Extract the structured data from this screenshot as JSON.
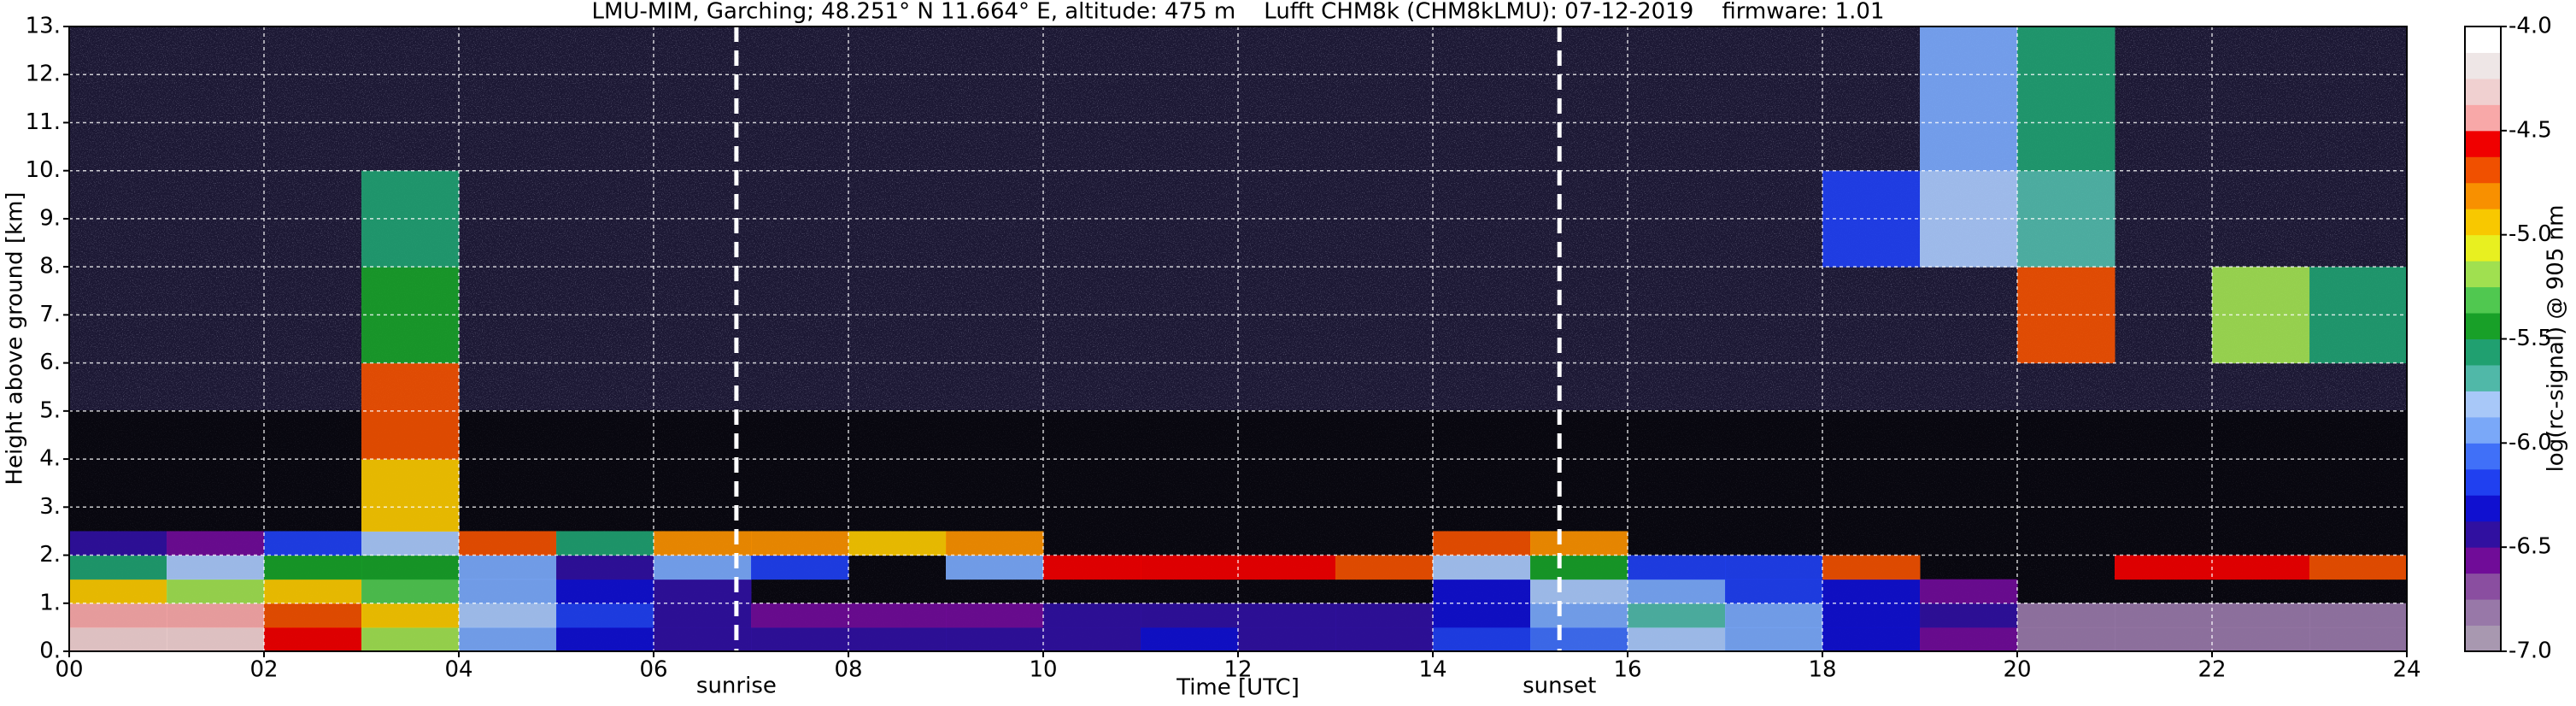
{
  "chart_data": {
    "type": "heatmap",
    "title": "LMU-MIM, Garching; 48.251° N 11.664° E, altitude: 475 m    Lufft CHM8k (CHM8kLMU): 07-12-2019    firmware: 1.01",
    "x_label": "Time [UTC]",
    "y_label": "Height above ground [km]",
    "colorbar_label": "log(rc-signal) @ 905 nm",
    "x": [
      0,
      1,
      2,
      3,
      4,
      5,
      6,
      7,
      8,
      9,
      10,
      11,
      12,
      13,
      14,
      15,
      16,
      17,
      18,
      19,
      20,
      21,
      22,
      23,
      24
    ],
    "y": [
      0,
      0.5,
      1,
      1.5,
      2,
      2.5,
      4,
      6,
      8,
      10,
      13
    ],
    "values": [
      [
        -4.3,
        -4.3,
        -4.6,
        -5.2,
        -6.0,
        -6.3,
        -6.4,
        -6.5,
        -6.5,
        -6.5,
        -6.4,
        -6.3,
        -6.4,
        -6.4,
        -6.2,
        -6.1,
        -5.8,
        -6.0,
        -6.3,
        -6.6,
        -6.8,
        -6.8,
        -6.8,
        -6.8
      ],
      [
        -4.4,
        -4.5,
        -4.7,
        -5.0,
        -5.8,
        -6.2,
        -6.4,
        -6.6,
        -6.6,
        -6.6,
        -6.5,
        -6.5,
        -6.5,
        -6.5,
        -6.3,
        -6.0,
        -5.7,
        -6.0,
        -6.3,
        -6.5,
        -6.8,
        -6.8,
        -6.8,
        -6.8
      ],
      [
        -5.0,
        -5.2,
        -4.9,
        -5.3,
        -6.0,
        -6.3,
        -6.4,
        null,
        null,
        null,
        null,
        null,
        null,
        null,
        -6.3,
        -5.8,
        -5.9,
        -6.2,
        -6.3,
        -6.6,
        null,
        null,
        null,
        null
      ],
      [
        -5.6,
        -5.8,
        -5.4,
        -5.5,
        -6.0,
        -6.4,
        -6.0,
        -6.2,
        null,
        -6.0,
        -4.6,
        -4.6,
        -4.6,
        -4.7,
        -5.8,
        -5.5,
        -6.2,
        -6.2,
        -4.7,
        null,
        null,
        -4.6,
        -4.6,
        -4.7
      ],
      [
        -6.4,
        -6.6,
        -6.2,
        -5.8,
        -4.7,
        -5.6,
        -4.8,
        -4.8,
        -4.9,
        -4.8,
        null,
        null,
        null,
        null,
        -4.7,
        -4.8,
        null,
        null,
        null,
        null,
        null,
        null,
        null,
        null
      ],
      [
        null,
        null,
        null,
        -5.0,
        null,
        null,
        null,
        null,
        null,
        null,
        null,
        null,
        null,
        null,
        null,
        null,
        null,
        null,
        null,
        null,
        null,
        null,
        null,
        null
      ],
      [
        null,
        null,
        null,
        -4.7,
        null,
        null,
        null,
        null,
        null,
        null,
        null,
        null,
        null,
        null,
        null,
        null,
        null,
        null,
        null,
        null,
        null,
        null,
        null,
        null
      ],
      [
        null,
        null,
        null,
        -5.5,
        null,
        null,
        null,
        null,
        null,
        null,
        null,
        null,
        null,
        null,
        null,
        null,
        null,
        null,
        null,
        null,
        -4.7,
        null,
        -5.2,
        -5.6
      ],
      [
        null,
        null,
        null,
        -5.6,
        null,
        null,
        null,
        null,
        null,
        null,
        null,
        null,
        null,
        null,
        null,
        null,
        null,
        null,
        -6.2,
        -5.8,
        -5.7,
        null,
        null,
        null
      ],
      [
        null,
        null,
        null,
        null,
        null,
        null,
        null,
        null,
        null,
        null,
        null,
        null,
        null,
        null,
        null,
        null,
        null,
        null,
        null,
        -6.0,
        -5.6,
        null,
        null,
        null
      ]
    ],
    "clim": [
      -7,
      -4
    ],
    "colors": [
      "#a898b0",
      "#9878a8",
      "#8a4ea0",
      "#700c98",
      "#3010a0",
      "#1010d0",
      "#2040f0",
      "#4070f8",
      "#7aa8f8",
      "#a8c8f8",
      "#50b8a8",
      "#20a070",
      "#18a028",
      "#50c850",
      "#a0e050",
      "#e8f020",
      "#f8c800",
      "#f89000",
      "#f05000",
      "#f00000",
      "#f8a8a8",
      "#f0d0d0",
      "#eee6e6",
      "#ffffff"
    ],
    "xlim": [
      0,
      24
    ],
    "ylim": [
      0,
      13
    ],
    "xticks": [
      {
        "value": 0,
        "label": "00"
      },
      {
        "value": 2,
        "label": "02"
      },
      {
        "value": 4,
        "label": "04"
      },
      {
        "value": 6,
        "label": "06"
      },
      {
        "value": 8,
        "label": "08"
      },
      {
        "value": 10,
        "label": "10"
      },
      {
        "value": 12,
        "label": "12"
      },
      {
        "value": 14,
        "label": "14"
      },
      {
        "value": 16,
        "label": "16"
      },
      {
        "value": 18,
        "label": "18"
      },
      {
        "value": 20,
        "label": "20"
      },
      {
        "value": 22,
        "label": "22"
      },
      {
        "value": 24,
        "label": "24"
      }
    ],
    "yticks": [
      {
        "value": 0,
        "label": "0."
      },
      {
        "value": 1,
        "label": "1."
      },
      {
        "value": 2,
        "label": "2."
      },
      {
        "value": 3,
        "label": "3."
      },
      {
        "value": 4,
        "label": "4."
      },
      {
        "value": 5,
        "label": "5."
      },
      {
        "value": 6,
        "label": "6."
      },
      {
        "value": 7,
        "label": "7."
      },
      {
        "value": 8,
        "label": "8."
      },
      {
        "value": 9,
        "label": "9."
      },
      {
        "value": 10,
        "label": "10."
      },
      {
        "value": 11,
        "label": "11."
      },
      {
        "value": 12,
        "label": "12."
      },
      {
        "value": 13,
        "label": "13."
      }
    ],
    "cticks": [
      {
        "value": -7,
        "label": "-7.0"
      },
      {
        "value": -6.5,
        "label": "-6.5"
      },
      {
        "value": -6,
        "label": "-6.0"
      },
      {
        "value": -5.5,
        "label": "-5.5"
      },
      {
        "value": -5,
        "label": "-5.0"
      },
      {
        "value": -4.5,
        "label": "-4.5"
      },
      {
        "value": -4,
        "label": "-4.0"
      }
    ],
    "annotations": [
      {
        "text": "sunrise",
        "x": 6.85
      },
      {
        "text": "sunset",
        "x": 15.3
      }
    ],
    "grid": true
  }
}
